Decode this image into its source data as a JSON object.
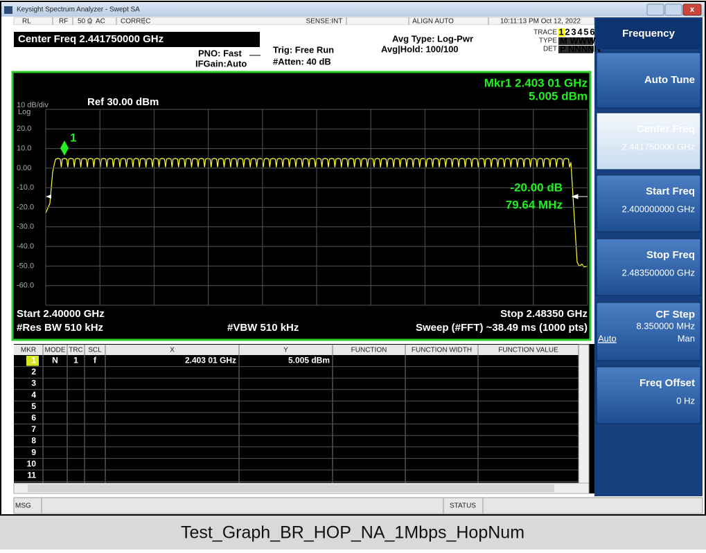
{
  "window": {
    "title": "Keysight Spectrum Analyzer - Swept SA"
  },
  "status_bar": {
    "items": [
      "RL",
      "RF",
      "50 Ω",
      "AC",
      "CORREC",
      "SENSE:INT",
      "ALIGN AUTO",
      "10:11:13 PM Oct 12, 2022"
    ]
  },
  "header": {
    "center_freq": "Center Freq 2.441750000 GHz",
    "pno": "PNO: Fast",
    "ifgain": "IFGain:Auto",
    "trig": "Trig: Free Run",
    "atten": "#Atten: 40 dB",
    "avg_type": "Avg Type: Log-Pwr",
    "avg_hold": "Avg|Hold: 100/100",
    "trace_label": "TRACE",
    "trace_nums": [
      "1",
      "2",
      "3",
      "4",
      "5",
      "6"
    ],
    "type_label": "TYPE",
    "type_value": "M WWWWW",
    "det_label": "DET",
    "det_value": "P NNNNN"
  },
  "graph": {
    "marker_readout": "Mkr1 2.403 01 GHz",
    "marker_level": "5.005 dBm",
    "scale": "10 dB/div",
    "scale_type": "Log",
    "ref": "Ref 30.00 dBm",
    "y_labels": [
      "20.0",
      "10.0",
      "0.00",
      "-10.0",
      "-20.0",
      "-30.0",
      "-40.0",
      "-50.0",
      "-60.0"
    ],
    "marker_label": "1",
    "annotations": [
      "-20.00 dB",
      "79.64 MHz"
    ],
    "start": "Start 2.40000 GHz",
    "stop": "Stop 2.48350 GHz",
    "rbw": "#Res BW 510 kHz",
    "vbw": "#VBW 510 kHz",
    "sweep": "Sweep (#FFT)  ~38.49 ms (1000 pts)"
  },
  "marker_table": {
    "columns": [
      "MKR",
      "MODE",
      "TRC",
      "SCL",
      "X",
      "Y",
      "FUNCTION",
      "FUNCTION WIDTH",
      "FUNCTION VALUE"
    ],
    "rows": [
      [
        "1",
        "N",
        "1",
        "f",
        "2.403 01 GHz",
        "5.005 dBm"
      ],
      [
        "2"
      ],
      [
        "3"
      ],
      [
        "4"
      ],
      [
        "5"
      ],
      [
        "6"
      ],
      [
        "7"
      ],
      [
        "8"
      ],
      [
        "9"
      ],
      [
        "10"
      ],
      [
        "11"
      ]
    ]
  },
  "softkeys": {
    "title": "Frequency",
    "buttons": [
      {
        "label": "Auto Tune"
      },
      {
        "label": "Center Freq",
        "value": "2.441750000 GHz"
      },
      {
        "label": "Start Freq",
        "value": "2.400000000 GHz"
      },
      {
        "label": "Stop Freq",
        "value": "2.483500000 GHz"
      },
      {
        "label": "CF Step",
        "value": "8.350000 MHz",
        "options": [
          "Auto",
          "Man"
        ]
      },
      {
        "label": "Freq Offset",
        "value": "0 Hz"
      }
    ]
  },
  "message_bar": {
    "msg": "MSG",
    "status": "STATUS"
  },
  "caption": "Test_Graph_BR_HOP_NA_1Mbps_HopNum"
}
